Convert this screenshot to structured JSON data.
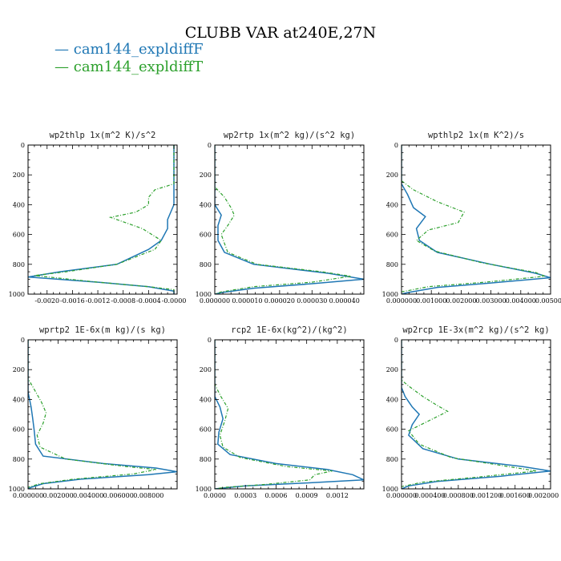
{
  "figure": {
    "title": "CLUBB VAR at240E,27N",
    "legend": [
      {
        "marker": "—",
        "label": "cam144_expldiffF",
        "color": "#1f77b4"
      },
      {
        "marker": "—",
        "label": "cam144_expldiffT",
        "color": "#2ca02c"
      }
    ]
  },
  "chart_data": [
    {
      "type": "line",
      "title": "wp2thlp  1x(m^2 K)/s^2",
      "ylim": [
        0,
        1000
      ],
      "y_inverted": true,
      "yticks": [
        0,
        200,
        400,
        600,
        800,
        1000
      ],
      "xlim": [
        -0.0023,
        5e-05
      ],
      "xticks": [
        -0.002,
        -0.0016,
        -0.0012,
        -0.0008,
        -0.0004,
        0.0
      ],
      "xtick_labels": [
        "-0.0020",
        "-0.0016",
        "-0.0012",
        "-0.0008",
        "-0.0004",
        "-0.0000"
      ],
      "series": [
        {
          "color": "#1f77b4",
          "dash": "",
          "points": [
            [
              0,
              0
            ],
            [
              0,
              100
            ],
            [
              0,
              200
            ],
            [
              0,
              300
            ],
            [
              0,
              400
            ],
            [
              -0.0001,
              500
            ],
            [
              -0.0001,
              560
            ],
            [
              -0.0002,
              640
            ],
            [
              -0.0004,
              700
            ],
            [
              -0.0009,
              800
            ],
            [
              -0.0018,
              850
            ],
            [
              -0.0023,
              885
            ],
            [
              -0.0012,
              920
            ],
            [
              -0.0004,
              950
            ],
            [
              0,
              980
            ],
            [
              0,
              1000
            ]
          ]
        },
        {
          "color": "#2ca02c",
          "dash": "4,2,1,2",
          "points": [
            [
              0,
              0
            ],
            [
              0,
              100
            ],
            [
              0,
              200
            ],
            [
              0,
              260
            ],
            [
              -0.0003,
              300
            ],
            [
              -0.0004,
              350
            ],
            [
              -0.0004,
              400
            ],
            [
              -0.0006,
              450
            ],
            [
              -0.001,
              485
            ],
            [
              -0.0005,
              560
            ],
            [
              -0.0002,
              640
            ],
            [
              -0.0003,
              700
            ],
            [
              -0.0009,
              800
            ],
            [
              -0.0017,
              850
            ],
            [
              -0.0022,
              875
            ],
            [
              -0.0012,
              920
            ],
            [
              -0.0004,
              950
            ],
            [
              0,
              970
            ],
            [
              0,
              1000
            ]
          ]
        }
      ]
    },
    {
      "type": "line",
      "title": "wp2rtp  1x(m^2 kg)/(s^2 kg)",
      "ylim": [
        0,
        1000
      ],
      "y_inverted": true,
      "yticks": [
        0,
        200,
        400,
        600,
        800,
        1000
      ],
      "xlim": [
        0,
        4.6e-05
      ],
      "xticks": [
        0.0,
        1e-05,
        2e-05,
        3e-05,
        4e-05
      ],
      "xtick_labels": [
        "0.000000",
        "0.000010",
        "0.000020",
        "0.000030",
        "0.000040"
      ],
      "series": [
        {
          "color": "#1f77b4",
          "dash": "",
          "points": [
            [
              0,
              0
            ],
            [
              0,
              200
            ],
            [
              0,
              300
            ],
            [
              0,
              400
            ],
            [
              2e-06,
              470
            ],
            [
              1e-06,
              540
            ],
            [
              1e-06,
              640
            ],
            [
              3e-06,
              720
            ],
            [
              1.2e-05,
              800
            ],
            [
              3.5e-05,
              860
            ],
            [
              4.6e-05,
              900
            ],
            [
              3e-05,
              930
            ],
            [
              1.2e-05,
              960
            ],
            [
              2e-06,
              990
            ],
            [
              0,
              1000
            ]
          ]
        },
        {
          "color": "#2ca02c",
          "dash": "4,2,1,2",
          "points": [
            [
              0,
              0
            ],
            [
              0,
              200
            ],
            [
              0,
              280
            ],
            [
              3e-06,
              350
            ],
            [
              5e-06,
              420
            ],
            [
              6e-06,
              470
            ],
            [
              4e-06,
              540
            ],
            [
              2e-06,
              600
            ],
            [
              3e-06,
              660
            ],
            [
              4e-06,
              720
            ],
            [
              1.3e-05,
              800
            ],
            [
              3.3e-05,
              850
            ],
            [
              4.2e-05,
              880
            ],
            [
              3e-05,
              920
            ],
            [
              1.2e-05,
              950
            ],
            [
              2e-06,
              985
            ],
            [
              0,
              1000
            ]
          ]
        }
      ]
    },
    {
      "type": "line",
      "title": "wpthlp2  1x(m K^2)/s",
      "ylim": [
        0,
        1000
      ],
      "y_inverted": true,
      "yticks": [
        0,
        200,
        400,
        600,
        800,
        1000
      ],
      "xlim": [
        0,
        0.005
      ],
      "xticks": [
        0.0,
        0.001,
        0.002,
        0.003,
        0.004,
        0.005
      ],
      "xtick_labels": [
        "0.000000",
        "0.001000",
        "0.002000",
        "0.003000",
        "0.004000",
        "0.005000"
      ],
      "series": [
        {
          "color": "#1f77b4",
          "dash": "",
          "points": [
            [
              0,
              0
            ],
            [
              0,
              200
            ],
            [
              0,
              260
            ],
            [
              0.0002,
              330
            ],
            [
              0.0004,
              420
            ],
            [
              0.0008,
              480
            ],
            [
              0.0005,
              560
            ],
            [
              0.0006,
              640
            ],
            [
              0.0012,
              720
            ],
            [
              0.003,
              800
            ],
            [
              0.0045,
              860
            ],
            [
              0.005,
              890
            ],
            [
              0.003,
              925
            ],
            [
              0.0012,
              955
            ],
            [
              0.0002,
              990
            ],
            [
              0,
              1000
            ]
          ]
        },
        {
          "color": "#2ca02c",
          "dash": "4,2,1,2",
          "points": [
            [
              0,
              0
            ],
            [
              0,
              200
            ],
            [
              0,
              240
            ],
            [
              0.0004,
              300
            ],
            [
              0.0012,
              380
            ],
            [
              0.0021,
              450
            ],
            [
              0.0019,
              520
            ],
            [
              0.0009,
              570
            ],
            [
              0.0005,
              640
            ],
            [
              0.0011,
              710
            ],
            [
              0.0027,
              790
            ],
            [
              0.0045,
              855
            ],
            [
              0.0048,
              880
            ],
            [
              0.0028,
              920
            ],
            [
              0.0009,
              950
            ],
            [
              0,
              985
            ],
            [
              0,
              1000
            ]
          ]
        }
      ]
    },
    {
      "type": "line",
      "title": "wprtp2  1E-6x(m kg)/(s kg)",
      "ylim": [
        0,
        1000
      ],
      "y_inverted": true,
      "yticks": [
        0,
        200,
        400,
        600,
        800,
        1000
      ],
      "xlim": [
        0,
        0.0099
      ],
      "xticks": [
        0.0,
        0.002,
        0.004,
        0.006,
        0.008
      ],
      "xtick_labels": [
        "0.000000",
        "0.002000",
        "0.004000",
        "0.006000",
        "0.008000"
      ],
      "series": [
        {
          "color": "#1f77b4",
          "dash": "",
          "points": [
            [
              0,
              0
            ],
            [
              0,
              200
            ],
            [
              0,
              350
            ],
            [
              0.0002,
              450
            ],
            [
              0.0003,
              520
            ],
            [
              0.0004,
              600
            ],
            [
              0.0005,
              700
            ],
            [
              0.001,
              780
            ],
            [
              0.005,
              830
            ],
            [
              0.0085,
              860
            ],
            [
              0.0099,
              885
            ],
            [
              0.008,
              905
            ],
            [
              0.0035,
              935
            ],
            [
              0.001,
              965
            ],
            [
              0.0002,
              990
            ],
            [
              0,
              1000
            ]
          ]
        },
        {
          "color": "#2ca02c",
          "dash": "4,2,1,2",
          "points": [
            [
              0,
              0
            ],
            [
              0,
              200
            ],
            [
              0,
              260
            ],
            [
              0.0004,
              330
            ],
            [
              0.0009,
              420
            ],
            [
              0.0012,
              490
            ],
            [
              0.001,
              560
            ],
            [
              0.0006,
              640
            ],
            [
              0.0008,
              720
            ],
            [
              0.0025,
              800
            ],
            [
              0.0065,
              850
            ],
            [
              0.0085,
              870
            ],
            [
              0.007,
              900
            ],
            [
              0.003,
              935
            ],
            [
              0.0008,
              965
            ],
            [
              0,
              990
            ],
            [
              0,
              1000
            ]
          ]
        }
      ]
    },
    {
      "type": "line",
      "title": "rcp2  1E-6x(kg^2)/(kg^2)",
      "ylim": [
        0,
        1000
      ],
      "y_inverted": true,
      "yticks": [
        0,
        200,
        400,
        600,
        800,
        1000
      ],
      "xlim": [
        0,
        0.00146
      ],
      "xticks": [
        0.0,
        0.0003,
        0.0006,
        0.0009,
        0.0012
      ],
      "xtick_labels": [
        "0.0000",
        "0.0003",
        "0.0006",
        "0.0009",
        "0.0012"
      ],
      "series": [
        {
          "color": "#1f77b4",
          "dash": "",
          "points": [
            [
              0,
              0
            ],
            [
              0,
              200
            ],
            [
              0,
              380
            ],
            [
              5e-05,
              450
            ],
            [
              8e-05,
              530
            ],
            [
              4e-05,
              620
            ],
            [
              3e-05,
              700
            ],
            [
              0.00015,
              770
            ],
            [
              0.0006,
              830
            ],
            [
              0.0011,
              870
            ],
            [
              0.00135,
              905
            ],
            [
              0.00146,
              940
            ],
            [
              0.0009,
              960
            ],
            [
              0.0003,
              980
            ],
            [
              0,
              1000
            ]
          ]
        },
        {
          "color": "#2ca02c",
          "dash": "4,2,1,2",
          "points": [
            [
              0,
              0
            ],
            [
              0,
              200
            ],
            [
              0,
              300
            ],
            [
              6e-05,
              380
            ],
            [
              0.00013,
              460
            ],
            [
              0.0001,
              540
            ],
            [
              5e-05,
              640
            ],
            [
              8e-05,
              720
            ],
            [
              0.00025,
              790
            ],
            [
              0.0007,
              850
            ],
            [
              0.00115,
              880
            ],
            [
              0.00098,
              905
            ],
            [
              0.00093,
              940
            ],
            [
              0.0005,
              970
            ],
            [
              0.0001,
              990
            ],
            [
              0,
              1000
            ]
          ]
        }
      ]
    },
    {
      "type": "line",
      "title": "wp2rcp  1E-3x(m^2 kg)/(s^2 kg)",
      "ylim": [
        0,
        1000
      ],
      "y_inverted": true,
      "yticks": [
        0,
        200,
        400,
        600,
        800,
        1000
      ],
      "xlim": [
        0,
        0.0021
      ],
      "xticks": [
        0.0,
        0.0004,
        0.0008,
        0.0012,
        0.0016,
        0.002
      ],
      "xtick_labels": [
        "0.000000",
        "0.000400",
        "0.000800",
        "0.001200",
        "0.001600",
        "0.002000"
      ],
      "series": [
        {
          "color": "#1f77b4",
          "dash": "",
          "points": [
            [
              0,
              0
            ],
            [
              0,
              200
            ],
            [
              0,
              320
            ],
            [
              5e-05,
              380
            ],
            [
              0.00015,
              450
            ],
            [
              0.00025,
              500
            ],
            [
              0.00015,
              570
            ],
            [
              0.0001,
              640
            ],
            [
              0.0003,
              730
            ],
            [
              0.0008,
              800
            ],
            [
              0.0017,
              850
            ],
            [
              0.0021,
              880
            ],
            [
              0.0014,
              915
            ],
            [
              0.0005,
              950
            ],
            [
              0.0001,
              980
            ],
            [
              0,
              1000
            ]
          ]
        },
        {
          "color": "#2ca02c",
          "dash": "4,2,1,2",
          "points": [
            [
              0,
              0
            ],
            [
              0,
              200
            ],
            [
              0,
              270
            ],
            [
              0.0001,
              310
            ],
            [
              0.0003,
              380
            ],
            [
              0.0005,
              440
            ],
            [
              0.00065,
              480
            ],
            [
              0.0004,
              540
            ],
            [
              0.0001,
              610
            ],
            [
              0.00025,
              700
            ],
            [
              0.0007,
              790
            ],
            [
              0.0015,
              850
            ],
            [
              0.0019,
              880
            ],
            [
              0.0011,
              920
            ],
            [
              0.0003,
              955
            ],
            [
              0,
              985
            ],
            [
              0,
              1000
            ]
          ]
        }
      ]
    }
  ]
}
